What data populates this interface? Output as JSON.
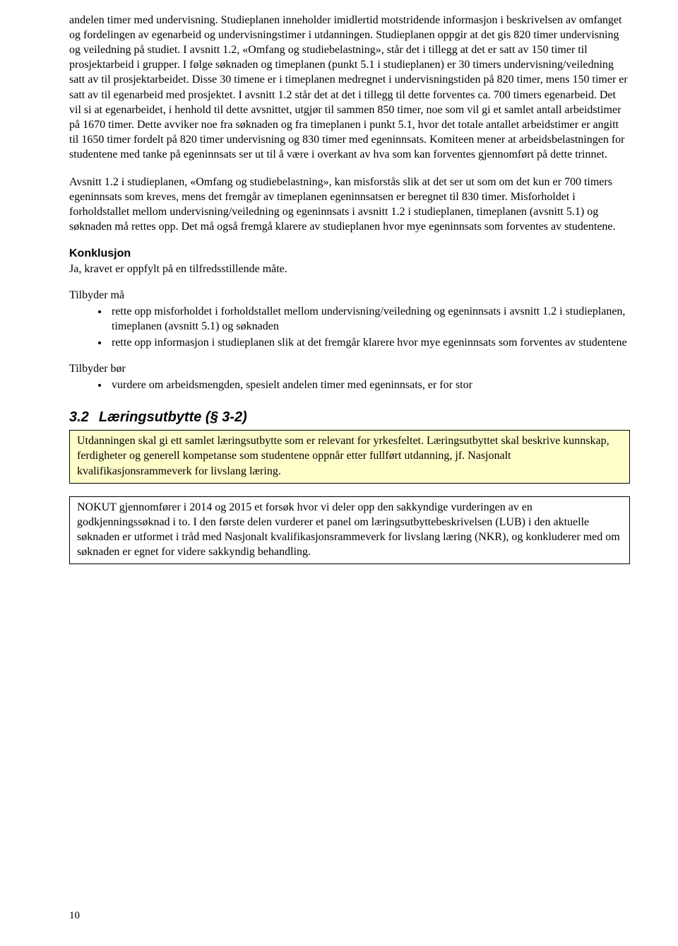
{
  "para1": "andelen timer med undervisning. Studieplanen inneholder imidlertid motstridende informasjon i beskrivelsen av omfanget og fordelingen av egenarbeid og undervisningstimer i utdanningen. Studieplanen oppgir at det gis 820 timer undervisning og veiledning på studiet. I avsnitt 1.2, «Omfang og studiebelastning», står det i tillegg at det er satt av 150 timer til prosjektarbeid i grupper. I følge søknaden og timeplanen (punkt 5.1 i studieplanen) er 30 timers undervisning/veiledning satt av til prosjektarbeidet. Disse 30 timene er i timeplanen medregnet i undervisningstiden på 820 timer, mens 150 timer er satt av til egenarbeid med prosjektet. I avsnitt 1.2 står det at det i tillegg til dette forventes ca. 700 timers egenarbeid. Det vil si at egenarbeidet, i henhold til dette avsnittet, utgjør til sammen 850 timer, noe som vil gi et samlet antall arbeidstimer på 1670 timer. Dette avviker noe fra søknaden og fra timeplanen i punkt 5.1, hvor det totale antallet arbeidstimer er angitt til 1650 timer fordelt på 820 timer undervisning og 830 timer med egeninnsats. Komiteen mener at arbeidsbelastningen for studentene med tanke på egeninnsats ser ut til å være i overkant av hva som kan forventes gjennomført på dette trinnet.",
  "para2": "Avsnitt 1.2 i studieplanen, «Omfang og studiebelastning», kan misforstås slik at det ser ut som om det kun er 700 timers egeninnsats som kreves, mens det fremgår av timeplanen egeninnsatsen er beregnet til 830 timer. Misforholdet i forholdstallet mellom undervisning/veiledning og egeninnsats i avsnitt 1.2 i studieplanen, timeplanen (avsnitt 5.1) og søknaden må rettes opp. Det må også fremgå klarere av studieplanen hvor mye egeninnsats som forventes av studentene.",
  "konklusjon": {
    "heading": "Konklusjon",
    "body": "Ja, kravet er oppfylt på en tilfredsstillende måte."
  },
  "tilbyder_ma": {
    "lead": "Tilbyder må",
    "items": [
      "rette opp misforholdet i forholdstallet mellom undervisning/veiledning og egeninnsats i avsnitt 1.2 i studieplanen, timeplanen (avsnitt 5.1) og søknaden",
      "rette opp informasjon i studieplanen slik at det fremgår klarere hvor mye egeninnsats som forventes av studentene"
    ]
  },
  "tilbyder_bor": {
    "lead": "Tilbyder bør",
    "items": [
      "vurdere om arbeidsmengden, spesielt andelen timer med egeninnsats, er for stor"
    ]
  },
  "section32": {
    "num": "3.2",
    "title": "Læringsutbytte (§ 3-2)"
  },
  "box_yellow": "Utdanningen skal gi ett samlet læringsutbytte som er relevant for yrkesfeltet. Læringsutbyttet skal beskrive kunnskap, ferdigheter og generell kompetanse som studentene oppnår etter fullført utdanning, jf. Nasjonalt kvalifikasjonsrammeverk for livslang læring.",
  "box_white": "NOKUT gjennomfører i 2014 og 2015 et forsøk hvor vi deler opp den sakkyndige vurderingen av en godkjenningssøknad i to. I den første delen vurderer et panel om læringsutbyttebeskrivelsen (LUB) i den aktuelle søknaden er utformet i tråd med Nasjonalt kvalifikasjonsrammeverk for livslang læring (NKR), og konkluderer med om søknaden er egnet for videre sakkyndig behandling.",
  "page_number": "10"
}
